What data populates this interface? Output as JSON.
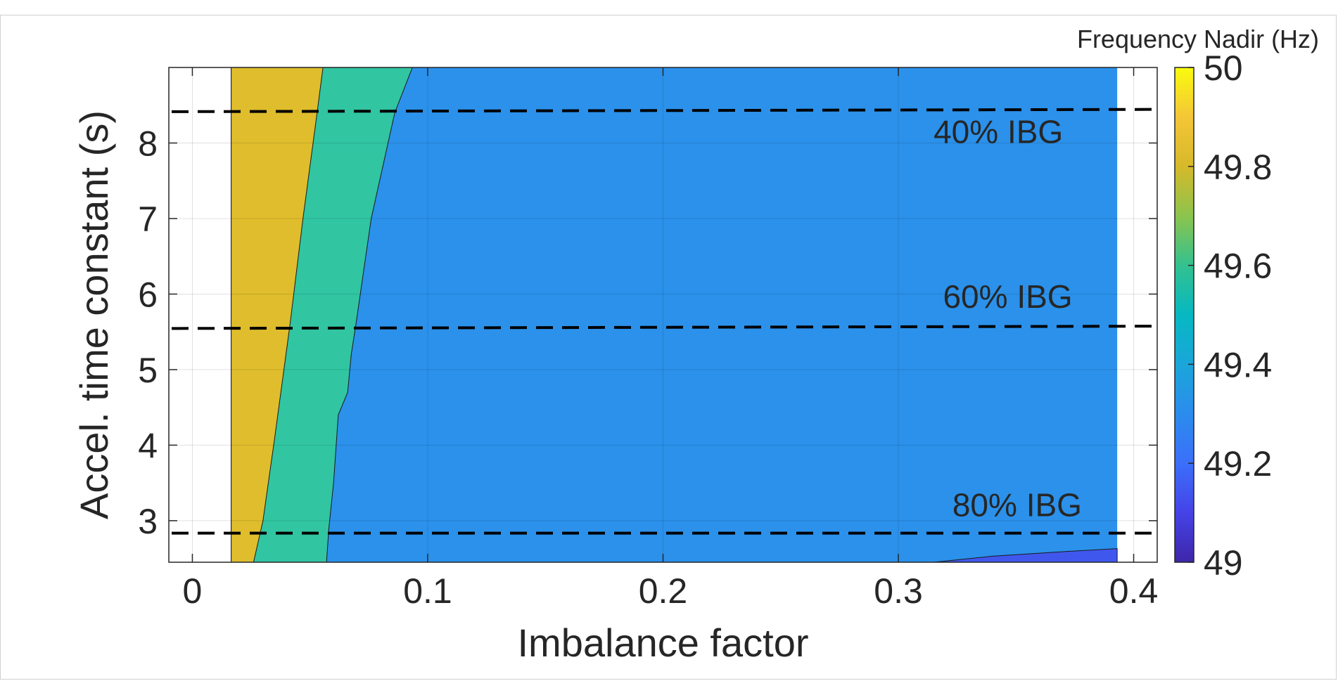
{
  "chart_data": {
    "type": "contour",
    "xlabel": "Imbalance factor",
    "ylabel": "Accel. time constant (s)",
    "xlim": [
      -0.01,
      0.41
    ],
    "ylim": [
      2.45,
      9.0
    ],
    "x_ticks": [
      0,
      0.1,
      0.2,
      0.3,
      0.4
    ],
    "x_tick_labels": [
      "0",
      "0.1",
      "0.2",
      "0.3",
      "0.4"
    ],
    "y_ticks": [
      3,
      4,
      5,
      6,
      7,
      8
    ],
    "y_tick_labels": [
      "3",
      "4",
      "5",
      "6",
      "7",
      "8"
    ],
    "grid": true,
    "colorbar": {
      "title": "Frequency Nadir (Hz)",
      "min": 49,
      "max": 50,
      "ticks": [
        49,
        49.2,
        49.4,
        49.6,
        49.8,
        50
      ],
      "tick_labels": [
        "49",
        "49.2",
        "49.4",
        "49.6",
        "49.8",
        "50"
      ],
      "colormap": "parula"
    },
    "data_extent_x": [
      0.0165,
      0.393
    ],
    "contour_regions": [
      {
        "level": 49.75,
        "color": "#dfbd2c",
        "boundary_right": [
          [
            0.0555,
            9.0
          ],
          [
            0.053,
            8.4
          ],
          [
            0.047,
            7.0
          ],
          [
            0.0415,
            5.6
          ],
          [
            0.035,
            4.1
          ],
          [
            0.03,
            3.0
          ],
          [
            0.026,
            2.45
          ]
        ]
      },
      {
        "level": 49.5,
        "color": "#31c5a2",
        "boundary_right": [
          [
            0.0935,
            9.0
          ],
          [
            0.086,
            8.4
          ],
          [
            0.076,
            7.0
          ],
          [
            0.0695,
            5.6
          ],
          [
            0.0675,
            5.2
          ],
          [
            0.066,
            4.7
          ],
          [
            0.062,
            4.4
          ],
          [
            0.06,
            3.5
          ],
          [
            0.058,
            2.9
          ],
          [
            0.057,
            2.45
          ]
        ]
      },
      {
        "level": 49.25,
        "color": "#2b91eb"
      },
      {
        "level": 49.0,
        "color": "#4057ee",
        "boundary_top": [
          [
            0.315,
            2.45
          ],
          [
            0.34,
            2.53
          ],
          [
            0.37,
            2.59
          ],
          [
            0.393,
            2.63
          ]
        ]
      }
    ],
    "reference_lines": [
      {
        "label": "40% IBG",
        "y": [
          8.415,
          8.445
        ],
        "label_x": 0.37,
        "label_y": 8.0
      },
      {
        "label": "60% IBG",
        "y": [
          5.545,
          5.575
        ],
        "label_x": 0.374,
        "label_y": 5.82
      },
      {
        "label": "80% IBG",
        "y": [
          2.835,
          2.835
        ],
        "label_x": 0.378,
        "label_y": 3.06
      }
    ]
  }
}
